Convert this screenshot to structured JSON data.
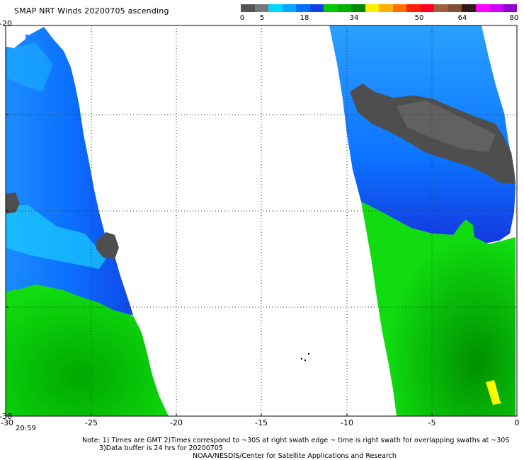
{
  "title": "SMAP NRT Winds 20200705 ascending",
  "colorbar": {
    "labels": [
      "0",
      "5",
      "18",
      "34",
      "50",
      "64",
      "80"
    ],
    "colors": [
      "#555555",
      "#777777",
      "#00d8ff",
      "#00a8ff",
      "#0070ff",
      "#1040e8",
      "#00cc00",
      "#00b000",
      "#008800",
      "#ffee00",
      "#ffb000",
      "#ff7000",
      "#ff2000",
      "#ff0020",
      "#a06040",
      "#805030",
      "#301818",
      "#ff00ff",
      "#d000ff",
      "#9000d0"
    ]
  },
  "x_axis": {
    "ticks": [
      "-30",
      "-25",
      "-20",
      "-15",
      "-10",
      "-5",
      "0"
    ]
  },
  "y_axis": {
    "left_labels": [
      "-20",
      "-30"
    ]
  },
  "time_label": "20:59",
  "notes": {
    "line1": "Note: 1) Times are GMT 2)Times correspond to ~30S at right swath edge ~ time is right swath for overlapping swaths at ~30S",
    "line2": "3)Data buffer is 24 hrs for 20200705",
    "line3": "NOAA/NESDIS/Center for Satellite Applications and Research"
  }
}
